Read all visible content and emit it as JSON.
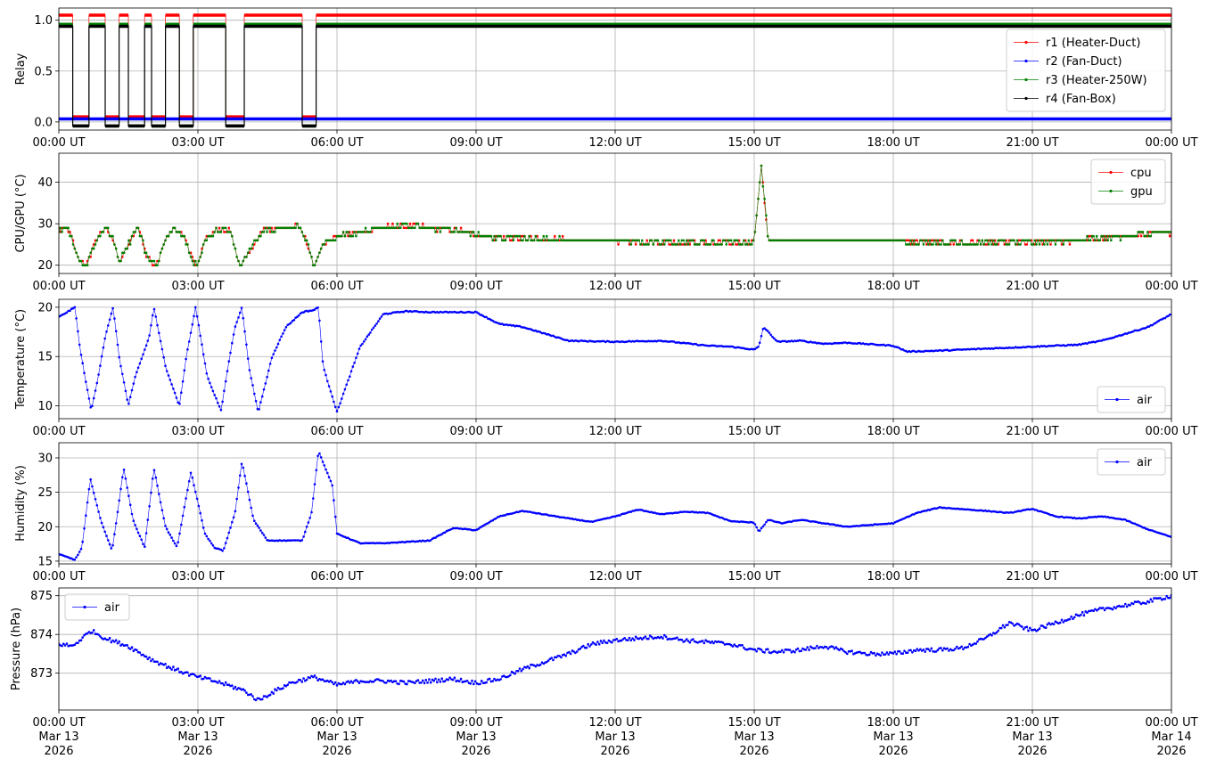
{
  "chart_data": [
    {
      "type": "line",
      "panel": "relay",
      "ylabel": "Relay",
      "xlim": [
        "00:00 UT",
        "00:00 UT +1d"
      ],
      "ylim": [
        -0.08,
        1.12
      ],
      "yticks": [
        "0.0",
        "0.5",
        "1.0"
      ],
      "grid": true,
      "legend_position": "center-right",
      "switch_hours": [
        0.3,
        0.65,
        1.0,
        1.3,
        1.5,
        1.85,
        2.0,
        2.3,
        2.6,
        2.9,
        3.6,
        4.0,
        5.25,
        5.55
      ],
      "series": [
        {
          "name": "r1 (Heater-Duct)",
          "color": "#ff0000",
          "high": 1.05,
          "low": 0.05
        },
        {
          "name": "r2 (Fan-Duct)",
          "color": "#0000ff",
          "constant": 0.03
        },
        {
          "name": "r3 (Heater-250W)",
          "color": "#008000",
          "high": 0.96,
          "low": -0.04
        },
        {
          "name": "r4 (Fan-Box)",
          "color": "#000000",
          "high": 0.94,
          "low": -0.04
        }
      ]
    },
    {
      "type": "line",
      "panel": "cpu_gpu",
      "ylabel": "CPU/GPU (°C)",
      "xlim": [
        "00:00 UT",
        "00:00 UT +1d"
      ],
      "ylim": [
        18,
        47
      ],
      "yticks": [
        "20",
        "30",
        "40"
      ],
      "grid": true,
      "legend_position": "top-right",
      "series": [
        {
          "name": "cpu",
          "color": "#ff0000"
        },
        {
          "name": "gpu",
          "color": "#008000"
        }
      ],
      "x_hours": [
        0,
        0.2,
        0.4,
        0.6,
        0.8,
        1.0,
        1.15,
        1.3,
        1.5,
        1.7,
        1.9,
        2.1,
        2.3,
        2.5,
        2.7,
        2.9,
        3.0,
        3.15,
        3.35,
        3.55,
        3.7,
        3.9,
        4.1,
        4.4,
        4.8,
        5.0,
        5.2,
        5.4,
        5.5,
        5.7,
        6.0,
        6.5,
        7.0,
        7.5,
        8.0,
        8.5,
        9.0,
        9.5,
        10.0,
        11.0,
        12.0,
        13.0,
        14.0,
        15.0,
        15.08,
        15.15,
        15.2,
        15.3,
        15.5,
        16.0,
        17.0,
        18.0,
        19.0,
        20.0,
        21.0,
        22.0,
        23.0,
        24.0
      ],
      "values": [
        28.5,
        29,
        22,
        20,
        26,
        29,
        27,
        21,
        25,
        29.5,
        22,
        20,
        26,
        29,
        27,
        21,
        20,
        26,
        28,
        29,
        28,
        20,
        23,
        28.5,
        29,
        29,
        29.5,
        24,
        20,
        25,
        27,
        28,
        29,
        29.5,
        29,
        28.5,
        27.5,
        26.5,
        26.5,
        26,
        26,
        25.5,
        25.5,
        25.5,
        35,
        45,
        38,
        26,
        26,
        26,
        26,
        26,
        25.5,
        25.5,
        25.5,
        26,
        27,
        28
      ]
    },
    {
      "type": "line",
      "panel": "temperature",
      "ylabel": "Temperature (°C)",
      "xlim": [
        "00:00 UT",
        "00:00 UT +1d"
      ],
      "ylim": [
        8.7,
        20.8
      ],
      "yticks": [
        "10",
        "15",
        "20"
      ],
      "grid": true,
      "legend_position": "bottom-right",
      "series": [
        {
          "name": "air",
          "color": "#0000ff"
        }
      ],
      "x_hours": [
        0,
        0.35,
        0.45,
        0.6,
        0.7,
        0.85,
        1.0,
        1.17,
        1.3,
        1.5,
        1.65,
        1.95,
        2.05,
        2.3,
        2.6,
        2.75,
        2.95,
        3.2,
        3.5,
        3.65,
        3.8,
        3.95,
        4.1,
        4.3,
        4.6,
        4.9,
        5.25,
        5.35,
        5.5,
        5.6,
        5.7,
        6.0,
        6.5,
        7.0,
        7.5,
        8.0,
        8.5,
        9.0,
        9.5,
        10.0,
        11.0,
        12.0,
        13.0,
        14.0,
        14.5,
        15.0,
        15.1,
        15.2,
        15.5,
        16.0,
        16.5,
        17.0,
        18.0,
        18.3,
        19.0,
        20.0,
        21.0,
        22.0,
        22.5,
        23.0,
        23.5,
        24.0
      ],
      "values": [
        19,
        20,
        16,
        12,
        9.5,
        13,
        17,
        20,
        15,
        10,
        13,
        17,
        20,
        14,
        10,
        15,
        20,
        13,
        9.5,
        14,
        18,
        20,
        14,
        9.3,
        15,
        18,
        19.5,
        19.6,
        19.7,
        20,
        14,
        9.4,
        16,
        19.3,
        19.6,
        19.5,
        19.5,
        19.5,
        18.3,
        18,
        16.6,
        16.5,
        16.6,
        16.1,
        16,
        15.7,
        16,
        18,
        16.5,
        16.6,
        16.3,
        16.4,
        16.1,
        15.5,
        15.6,
        15.8,
        16,
        16.2,
        16.6,
        17.3,
        18,
        19.3
      ]
    },
    {
      "type": "line",
      "panel": "humidity",
      "ylabel": "Humidity (%)",
      "xlim": [
        "00:00 UT",
        "00:00 UT +1d"
      ],
      "ylim": [
        14.6,
        32.2
      ],
      "yticks": [
        "15",
        "20",
        "25",
        "30"
      ],
      "grid": true,
      "legend_position": "top-right",
      "series": [
        {
          "name": "air",
          "color": "#0000ff"
        }
      ],
      "x_hours": [
        0,
        0.35,
        0.5,
        0.68,
        0.9,
        1.15,
        1.4,
        1.6,
        1.85,
        2.05,
        2.3,
        2.55,
        2.85,
        3.15,
        3.35,
        3.55,
        3.8,
        3.95,
        4.2,
        4.5,
        5.0,
        5.25,
        5.45,
        5.6,
        5.9,
        6.0,
        6.5,
        7.0,
        8.0,
        8.5,
        9.0,
        9.5,
        10.0,
        11.0,
        11.5,
        12.0,
        12.5,
        13.0,
        13.5,
        14.0,
        14.5,
        15.0,
        15.1,
        15.3,
        15.6,
        16.0,
        16.5,
        17.0,
        18.0,
        18.5,
        19.0,
        20.0,
        20.5,
        21.0,
        21.5,
        22.0,
        22.5,
        23.0,
        23.5,
        24.0
      ],
      "values": [
        16,
        15.2,
        17,
        27,
        21,
        16.5,
        28.5,
        21,
        17,
        28.5,
        20,
        17,
        28,
        19,
        17,
        16.5,
        22,
        29.5,
        21,
        18,
        18,
        18,
        22,
        31,
        26,
        19,
        17.6,
        17.6,
        18,
        19.8,
        19.5,
        21.5,
        22.3,
        21.2,
        20.7,
        21.5,
        22.5,
        21.8,
        22.2,
        22,
        20.8,
        20.6,
        19.3,
        21,
        20.5,
        21,
        20.5,
        20,
        20.5,
        22,
        22.8,
        22.3,
        22,
        22.6,
        21.5,
        21.2,
        21.5,
        21,
        19.6,
        18.5
      ]
    },
    {
      "type": "line",
      "panel": "pressure",
      "ylabel": "Pressure (hPa)",
      "xlim": [
        "00:00 UT",
        "00:00 UT +1d"
      ],
      "ylim": [
        872.05,
        875.2
      ],
      "yticks": [
        "873",
        "874",
        "875"
      ],
      "grid": true,
      "legend_position": "top-left",
      "series": [
        {
          "name": "air",
          "color": "#0000ff"
        }
      ],
      "x_hours": [
        0,
        0.3,
        0.7,
        1.0,
        1.5,
        2.0,
        2.5,
        3.0,
        3.5,
        4.0,
        4.3,
        4.6,
        5.0,
        5.5,
        6.0,
        6.5,
        7.0,
        7.5,
        8.0,
        8.5,
        9.0,
        9.5,
        10.0,
        10.5,
        11.0,
        11.5,
        12.0,
        12.5,
        13.0,
        13.5,
        14.0,
        14.5,
        15.0,
        15.5,
        16.0,
        16.5,
        17.0,
        17.5,
        18.0,
        18.5,
        19.0,
        19.5,
        20.0,
        20.5,
        21.0,
        21.5,
        22.0,
        22.5,
        23.0,
        23.5,
        24.0
      ],
      "values": [
        873.75,
        873.7,
        874.1,
        873.9,
        873.7,
        873.35,
        873.1,
        872.9,
        872.75,
        872.55,
        872.3,
        872.5,
        872.75,
        872.9,
        872.7,
        872.8,
        872.8,
        872.75,
        872.8,
        872.85,
        872.75,
        872.85,
        873.1,
        873.3,
        873.5,
        873.75,
        873.85,
        873.9,
        873.95,
        873.85,
        873.8,
        873.75,
        873.6,
        873.55,
        873.6,
        873.7,
        873.55,
        873.5,
        873.5,
        873.6,
        873.6,
        873.65,
        873.9,
        874.3,
        874.1,
        874.3,
        874.5,
        874.65,
        874.75,
        874.85,
        875.0
      ]
    }
  ],
  "x_axis": {
    "tick_labels": [
      "00:00 UT",
      "03:00 UT",
      "06:00 UT",
      "09:00 UT",
      "12:00 UT",
      "15:00 UT",
      "18:00 UT",
      "21:00 UT",
      "00:00 UT"
    ],
    "bottom_dates": [
      "Mar 13",
      "Mar 13",
      "Mar 13",
      "Mar 13",
      "Mar 13",
      "Mar 13",
      "Mar 13",
      "Mar 13",
      "Mar 14"
    ],
    "bottom_years": [
      "2026",
      "2026",
      "2026",
      "2026",
      "2026",
      "2026",
      "2026",
      "2026",
      "2026"
    ]
  }
}
